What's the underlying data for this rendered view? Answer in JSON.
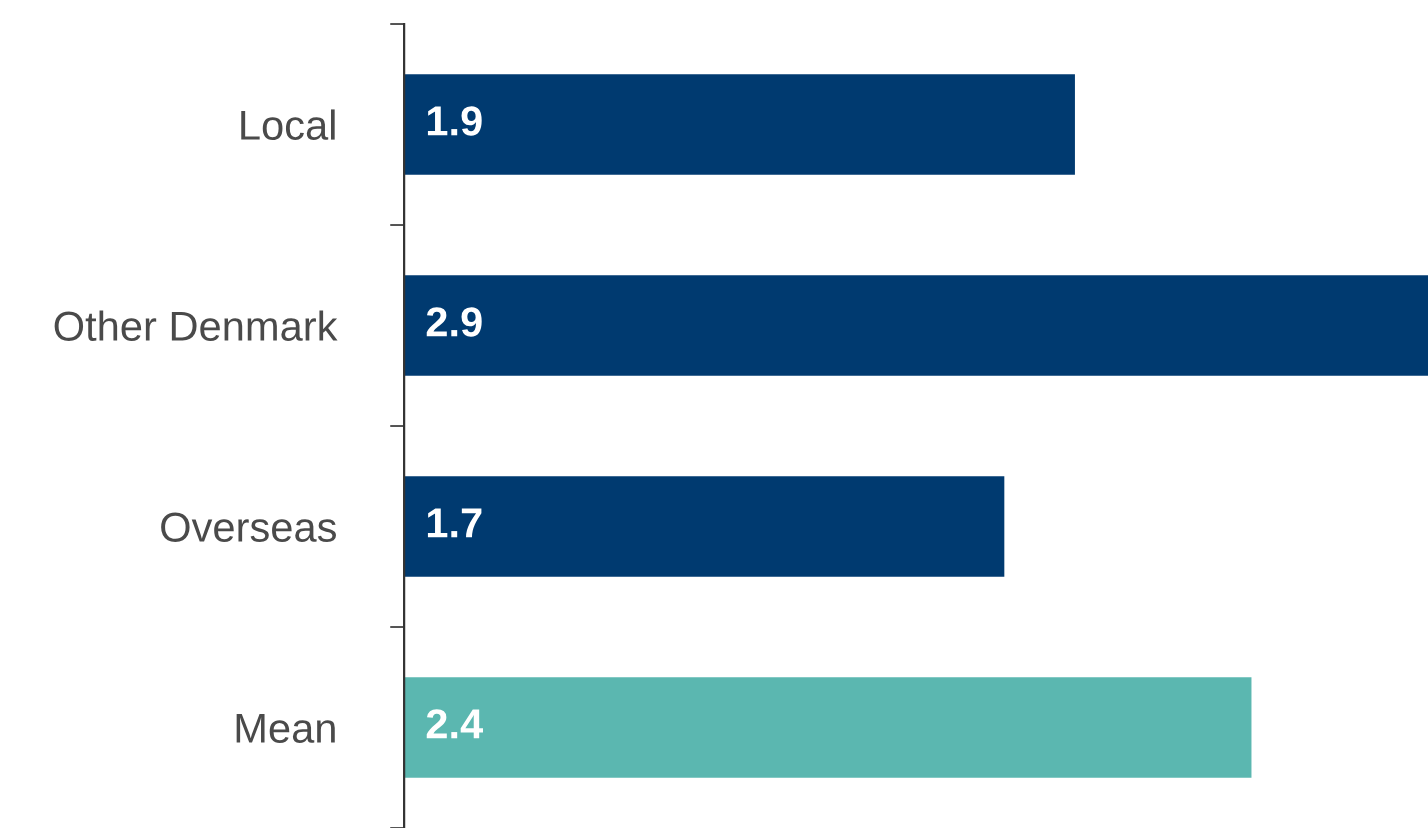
{
  "chart_data": {
    "type": "bar",
    "orientation": "horizontal",
    "categories": [
      "Local",
      "Other Denmark",
      "Overseas",
      "Mean"
    ],
    "values": [
      1.9,
      2.9,
      1.7,
      2.4
    ],
    "colors": [
      "#003a70",
      "#003a70",
      "#003a70",
      "#5bb7b0"
    ],
    "xlim": [
      0,
      2.9
    ],
    "data_labels": true,
    "grid": false,
    "legend": false
  }
}
